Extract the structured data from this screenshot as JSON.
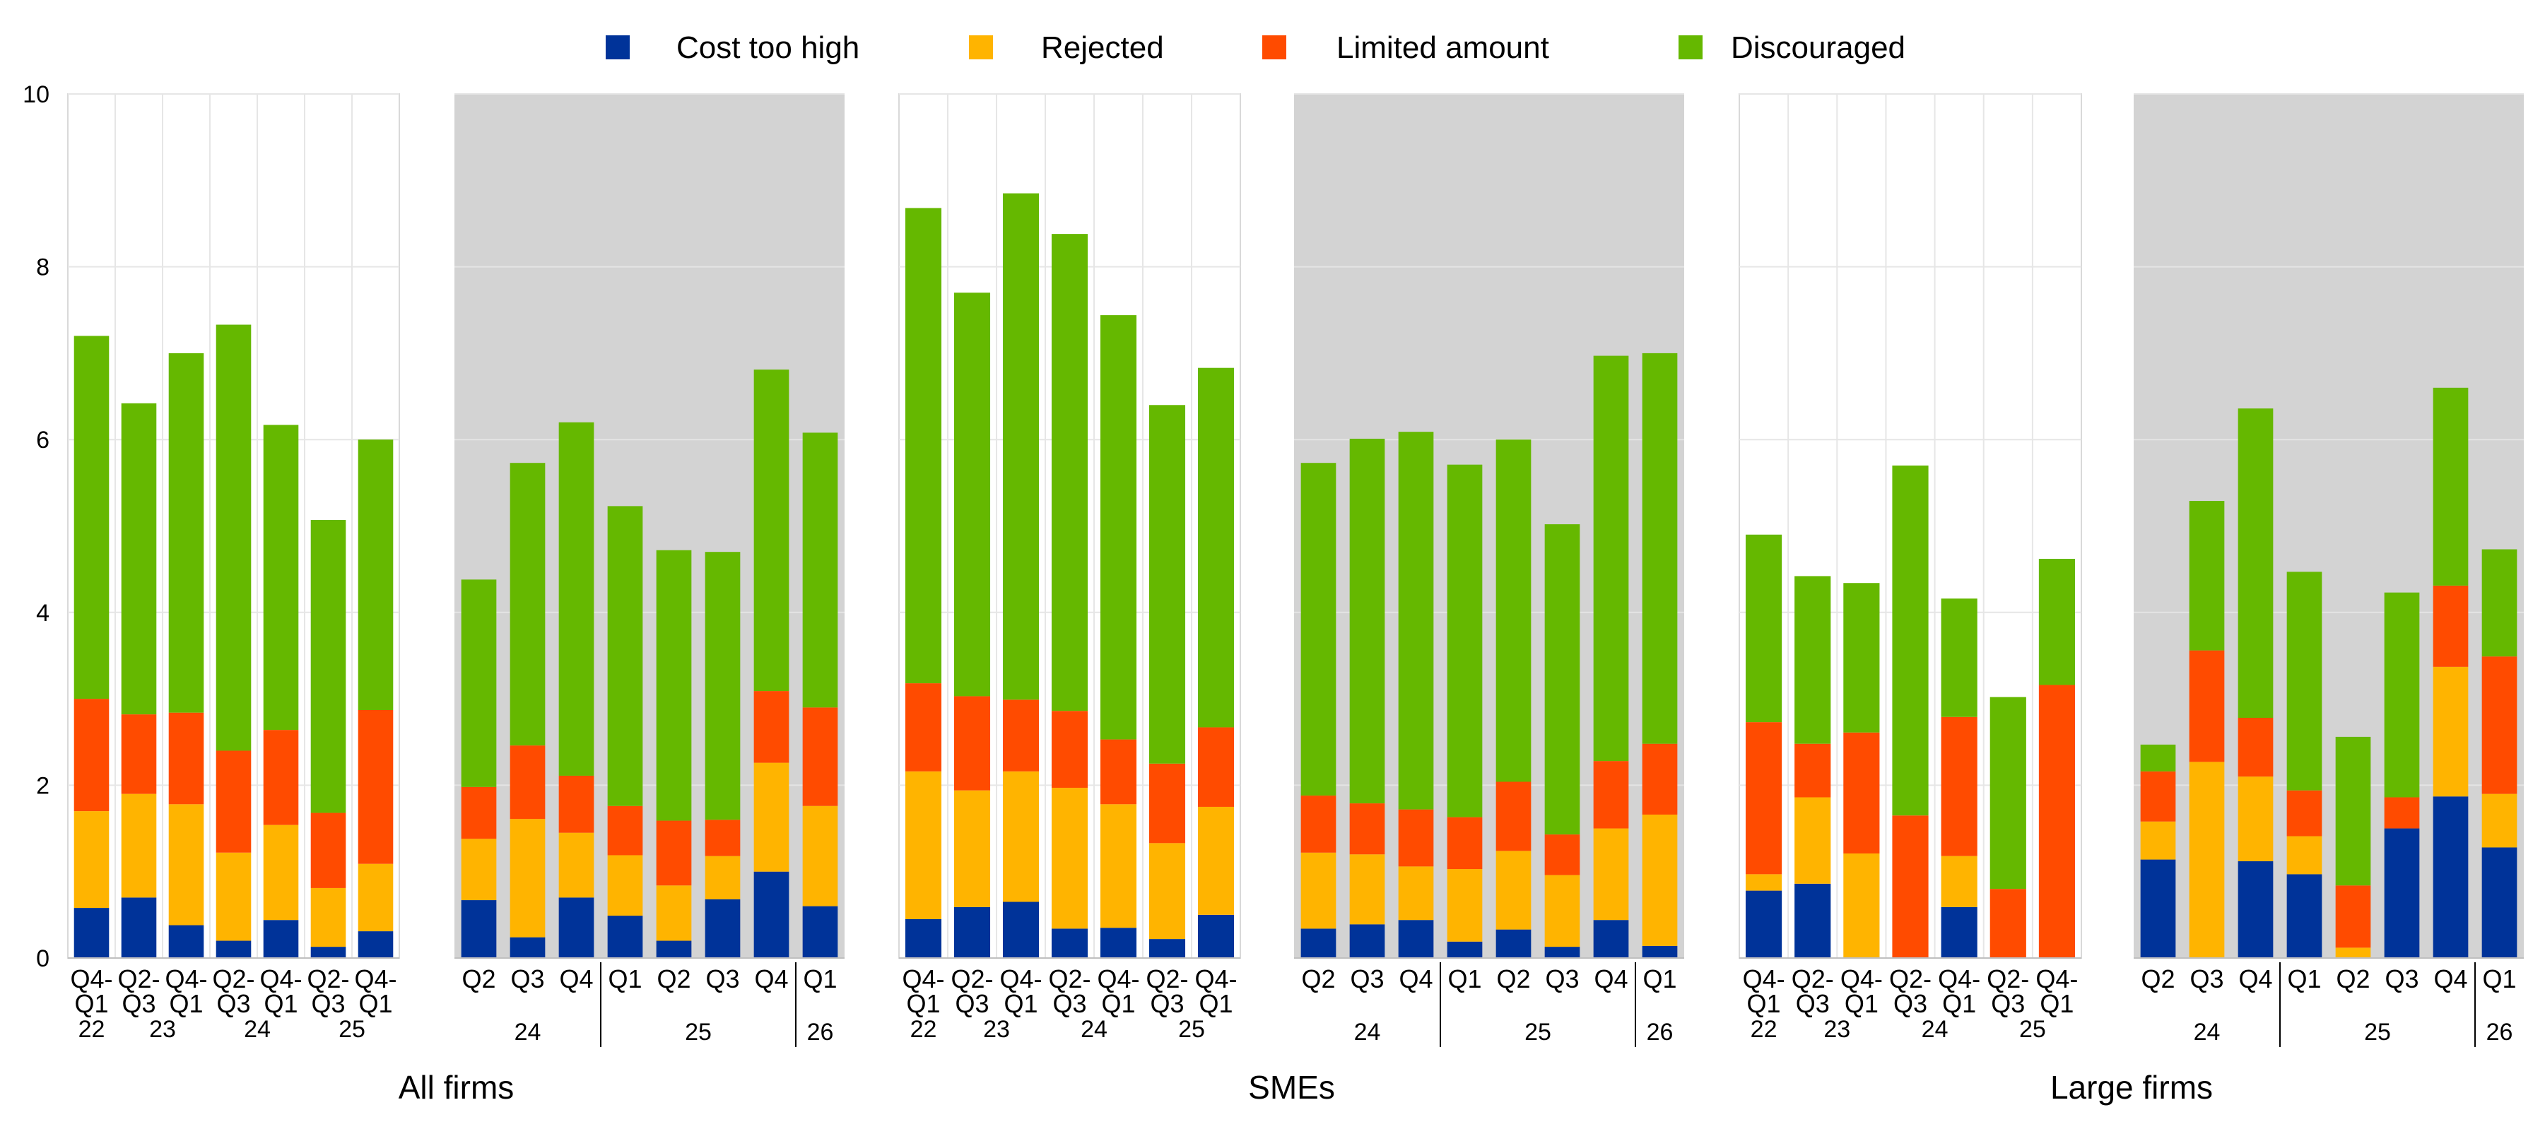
{
  "chart_data": {
    "type": "bar",
    "stacked": true,
    "ylim": [
      0,
      10
    ],
    "yticks": [
      0,
      2,
      4,
      6,
      8,
      10
    ],
    "legend": {
      "placement": "top",
      "entries": [
        {
          "name": "Cost too high",
          "color": "#003399"
        },
        {
          "name": "Rejected",
          "color": "#FFB400"
        },
        {
          "name": "Limited amount",
          "color": "#FF4B00"
        },
        {
          "name": "Discouraged",
          "color": "#65B800"
        }
      ]
    },
    "groups": [
      {
        "title": "All firms",
        "panels": [
          {
            "shaded": false,
            "categories": [
              {
                "top": "Q4-",
                "bottom": "Q1"
              },
              {
                "top": "Q2-",
                "bottom": "Q3"
              },
              {
                "top": "Q4-",
                "bottom": "Q1"
              },
              {
                "top": "Q2-",
                "bottom": "Q3"
              },
              {
                "top": "Q4-",
                "bottom": "Q1"
              },
              {
                "top": "Q2-",
                "bottom": "Q3"
              },
              {
                "top": "Q4-",
                "bottom": "Q1"
              }
            ],
            "years": [
              "22",
              "23",
              "24",
              "25"
            ],
            "series": [
              {
                "name": "Cost too high",
                "values": [
                  0.58,
                  0.7,
                  0.38,
                  0.2,
                  0.44,
                  0.13,
                  0.31
                ]
              },
              {
                "name": "Rejected",
                "values": [
                  1.12,
                  1.2,
                  1.4,
                  1.02,
                  1.1,
                  0.68,
                  0.78
                ]
              },
              {
                "name": "Limited amount",
                "values": [
                  1.3,
                  0.92,
                  1.06,
                  1.18,
                  1.1,
                  0.87,
                  1.78
                ]
              },
              {
                "name": "Discouraged",
                "values": [
                  4.2,
                  3.6,
                  4.16,
                  4.93,
                  3.53,
                  3.39,
                  3.13
                ]
              }
            ]
          },
          {
            "shaded": true,
            "categories": [
              "Q2",
              "Q3",
              "Q4",
              "Q1",
              "Q2",
              "Q3",
              "Q4",
              "Q1"
            ],
            "years": [
              {
                "label": "24",
                "count": 3
              },
              {
                "label": "25",
                "count": 4
              },
              {
                "label": "26",
                "count": 1
              }
            ],
            "series": [
              {
                "name": "Cost too high",
                "values": [
                  0.67,
                  0.24,
                  0.7,
                  0.49,
                  0.2,
                  0.68,
                  1.0,
                  0.6
                ]
              },
              {
                "name": "Rejected",
                "values": [
                  0.71,
                  1.37,
                  0.75,
                  0.7,
                  0.64,
                  0.5,
                  1.26,
                  1.16
                ]
              },
              {
                "name": "Limited amount",
                "values": [
                  0.6,
                  0.85,
                  0.66,
                  0.57,
                  0.75,
                  0.42,
                  0.83,
                  1.14
                ]
              },
              {
                "name": "Discouraged",
                "values": [
                  2.4,
                  3.27,
                  4.09,
                  3.47,
                  3.13,
                  3.1,
                  3.72,
                  3.18
                ]
              }
            ]
          }
        ]
      },
      {
        "title": "SMEs",
        "panels": [
          {
            "shaded": false,
            "categories": [
              {
                "top": "Q4-",
                "bottom": "Q1"
              },
              {
                "top": "Q2-",
                "bottom": "Q3"
              },
              {
                "top": "Q4-",
                "bottom": "Q1"
              },
              {
                "top": "Q2-",
                "bottom": "Q3"
              },
              {
                "top": "Q4-",
                "bottom": "Q1"
              },
              {
                "top": "Q2-",
                "bottom": "Q3"
              },
              {
                "top": "Q4-",
                "bottom": "Q1"
              }
            ],
            "years": [
              "22",
              "23",
              "24",
              "25"
            ],
            "series": [
              {
                "name": "Cost too high",
                "values": [
                  0.45,
                  0.59,
                  0.65,
                  0.34,
                  0.35,
                  0.22,
                  0.5
                ]
              },
              {
                "name": "Rejected",
                "values": [
                  1.71,
                  1.35,
                  1.51,
                  1.63,
                  1.43,
                  1.11,
                  1.25
                ]
              },
              {
                "name": "Limited amount",
                "values": [
                  1.02,
                  1.09,
                  0.83,
                  0.89,
                  0.75,
                  0.92,
                  0.92
                ]
              },
              {
                "name": "Discouraged",
                "values": [
                  5.5,
                  4.67,
                  5.86,
                  5.52,
                  4.91,
                  4.15,
                  4.16
                ]
              }
            ]
          },
          {
            "shaded": true,
            "categories": [
              "Q2",
              "Q3",
              "Q4",
              "Q1",
              "Q2",
              "Q3",
              "Q4",
              "Q1"
            ],
            "years": [
              {
                "label": "24",
                "count": 3
              },
              {
                "label": "25",
                "count": 4
              },
              {
                "label": "26",
                "count": 1
              }
            ],
            "series": [
              {
                "name": "Cost too high",
                "values": [
                  0.34,
                  0.39,
                  0.44,
                  0.19,
                  0.33,
                  0.13,
                  0.44,
                  0.14
                ]
              },
              {
                "name": "Rejected",
                "values": [
                  0.88,
                  0.81,
                  0.62,
                  0.84,
                  0.91,
                  0.83,
                  1.06,
                  1.52
                ]
              },
              {
                "name": "Limited amount",
                "values": [
                  0.66,
                  0.59,
                  0.66,
                  0.6,
                  0.8,
                  0.47,
                  0.78,
                  0.82
                ]
              },
              {
                "name": "Discouraged",
                "values": [
                  3.85,
                  4.22,
                  4.37,
                  4.08,
                  3.96,
                  3.59,
                  4.69,
                  4.52
                ]
              }
            ]
          }
        ]
      },
      {
        "title": "Large firms",
        "panels": [
          {
            "shaded": false,
            "categories": [
              {
                "top": "Q4-",
                "bottom": "Q1"
              },
              {
                "top": "Q2-",
                "bottom": "Q3"
              },
              {
                "top": "Q4-",
                "bottom": "Q1"
              },
              {
                "top": "Q2-",
                "bottom": "Q3"
              },
              {
                "top": "Q4-",
                "bottom": "Q1"
              },
              {
                "top": "Q2-",
                "bottom": "Q3"
              },
              {
                "top": "Q4-",
                "bottom": "Q1"
              }
            ],
            "years": [
              "22",
              "23",
              "24",
              "25"
            ],
            "series": [
              {
                "name": "Cost too high",
                "values": [
                  0.78,
                  0.86,
                  0.0,
                  0.0,
                  0.59,
                  0.0,
                  0.0
                ]
              },
              {
                "name": "Rejected",
                "values": [
                  0.19,
                  1.0,
                  1.21,
                  0.0,
                  0.59,
                  0.0,
                  0.0
                ]
              },
              {
                "name": "Limited amount",
                "values": [
                  1.76,
                  0.62,
                  1.4,
                  1.65,
                  1.61,
                  0.8,
                  3.16
                ]
              },
              {
                "name": "Discouraged",
                "values": [
                  2.17,
                  1.94,
                  1.73,
                  4.05,
                  1.37,
                  2.22,
                  1.46
                ]
              }
            ]
          },
          {
            "shaded": true,
            "categories": [
              "Q2",
              "Q3",
              "Q4",
              "Q1",
              "Q2",
              "Q3",
              "Q4",
              "Q1"
            ],
            "years": [
              {
                "label": "24",
                "count": 3
              },
              {
                "label": "25",
                "count": 4
              },
              {
                "label": "26",
                "count": 1
              }
            ],
            "series": [
              {
                "name": "Cost too high",
                "values": [
                  1.14,
                  0.0,
                  1.12,
                  0.97,
                  0.0,
                  1.5,
                  1.87,
                  1.28
                ]
              },
              {
                "name": "Rejected",
                "values": [
                  0.44,
                  2.27,
                  0.98,
                  0.44,
                  0.12,
                  0.0,
                  1.5,
                  0.62
                ]
              },
              {
                "name": "Limited amount",
                "values": [
                  0.58,
                  1.29,
                  0.68,
                  0.53,
                  0.72,
                  0.36,
                  0.94,
                  1.59
                ]
              },
              {
                "name": "Discouraged",
                "values": [
                  0.31,
                  1.73,
                  3.58,
                  2.53,
                  1.72,
                  2.37,
                  2.29,
                  1.24
                ]
              }
            ]
          }
        ]
      }
    ]
  }
}
